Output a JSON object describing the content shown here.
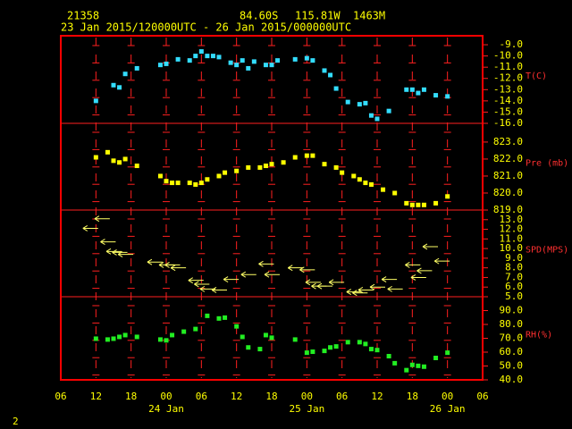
{
  "header": {
    "station": "21358",
    "latitude": "84.60S",
    "longitude": "115.81W",
    "elevation": "1463M",
    "period": "23 Jan 2015/120000UTC - 26 Jan 2015/000000UTC"
  },
  "page_number": "2",
  "chart_data": [
    {
      "type": "scatter",
      "marker": "square",
      "label": "T(C)",
      "color": "#33ddff",
      "xlim": [
        "2015-01-23T06:00Z",
        "2015-01-26T06:00Z"
      ],
      "x": [
        "2015-01-23T12:00Z",
        "2015-01-23T15:00Z",
        "2015-01-23T16:00Z",
        "2015-01-23T17:00Z",
        "2015-01-23T19:00Z",
        "2015-01-23T23:00Z",
        "2015-01-24T00:00Z",
        "2015-01-24T02:00Z",
        "2015-01-24T04:00Z",
        "2015-01-24T05:00Z",
        "2015-01-24T06:00Z",
        "2015-01-24T07:00Z",
        "2015-01-24T08:00Z",
        "2015-01-24T09:00Z",
        "2015-01-24T11:00Z",
        "2015-01-24T12:00Z",
        "2015-01-24T13:00Z",
        "2015-01-24T14:00Z",
        "2015-01-24T15:00Z",
        "2015-01-24T17:00Z",
        "2015-01-24T18:00Z",
        "2015-01-24T19:00Z",
        "2015-01-24T22:00Z",
        "2015-01-25T00:00Z",
        "2015-01-25T01:00Z",
        "2015-01-25T03:00Z",
        "2015-01-25T04:00Z",
        "2015-01-25T05:00Z",
        "2015-01-25T07:00Z",
        "2015-01-25T09:00Z",
        "2015-01-25T10:00Z",
        "2015-01-25T11:00Z",
        "2015-01-25T12:00Z",
        "2015-01-25T14:00Z",
        "2015-01-25T17:00Z",
        "2015-01-25T18:00Z",
        "2015-01-25T19:00Z",
        "2015-01-25T20:00Z",
        "2015-01-25T22:00Z",
        "2015-01-26T00:00Z"
      ],
      "values": [
        -14.0,
        -12.6,
        -12.8,
        -11.6,
        -11.1,
        -10.8,
        -10.7,
        -10.3,
        -10.4,
        -10.0,
        -9.6,
        -10.0,
        -10.0,
        -10.1,
        -10.6,
        -10.8,
        -10.4,
        -11.1,
        -10.5,
        -10.8,
        -10.8,
        -10.4,
        -10.3,
        -10.2,
        -10.4,
        -11.3,
        -11.7,
        -12.9,
        -14.1,
        -14.3,
        -14.2,
        -15.3,
        -15.6,
        -14.9,
        -13.0,
        -13.0,
        -13.3,
        -13.0,
        -13.5,
        -13.6
      ],
      "ylim": [
        -16,
        -8.2
      ],
      "yticks": [
        {
          "value": -9,
          "label": "-9.0"
        },
        {
          "value": -10,
          "label": "-10.0"
        },
        {
          "value": -11,
          "label": "-11.0"
        },
        {
          "value": -12,
          "label": "-12.0"
        },
        {
          "value": -13,
          "label": "-13.0"
        },
        {
          "value": -14,
          "label": "-14.0"
        },
        {
          "value": -15,
          "label": "-15.0"
        },
        {
          "value": -16,
          "label": "-16.0"
        }
      ]
    },
    {
      "type": "scatter",
      "marker": "square",
      "label": "Pre (mb)",
      "color": "#ffff00",
      "xlim": [
        "2015-01-23T06:00Z",
        "2015-01-26T06:00Z"
      ],
      "x": [
        "2015-01-23T12:00Z",
        "2015-01-23T14:00Z",
        "2015-01-23T15:00Z",
        "2015-01-23T16:00Z",
        "2015-01-23T17:00Z",
        "2015-01-23T19:00Z",
        "2015-01-23T23:00Z",
        "2015-01-24T00:00Z",
        "2015-01-24T01:00Z",
        "2015-01-24T02:00Z",
        "2015-01-24T04:00Z",
        "2015-01-24T05:00Z",
        "2015-01-24T06:00Z",
        "2015-01-24T07:00Z",
        "2015-01-24T09:00Z",
        "2015-01-24T10:00Z",
        "2015-01-24T12:00Z",
        "2015-01-24T14:00Z",
        "2015-01-24T16:00Z",
        "2015-01-24T17:00Z",
        "2015-01-24T18:00Z",
        "2015-01-24T20:00Z",
        "2015-01-24T22:00Z",
        "2015-01-25T00:00Z",
        "2015-01-25T01:00Z",
        "2015-01-25T03:00Z",
        "2015-01-25T05:00Z",
        "2015-01-25T06:00Z",
        "2015-01-25T08:00Z",
        "2015-01-25T09:00Z",
        "2015-01-25T10:00Z",
        "2015-01-25T11:00Z",
        "2015-01-25T13:00Z",
        "2015-01-25T15:00Z",
        "2015-01-25T17:00Z",
        "2015-01-25T18:00Z",
        "2015-01-25T19:00Z",
        "2015-01-25T20:00Z",
        "2015-01-25T22:00Z",
        "2015-01-26T00:00Z"
      ],
      "values": [
        822.1,
        822.4,
        821.9,
        821.8,
        822.0,
        821.6,
        821.0,
        820.7,
        820.6,
        820.6,
        820.6,
        820.5,
        820.6,
        820.8,
        821.0,
        821.2,
        821.3,
        821.5,
        821.5,
        821.6,
        821.7,
        821.8,
        822.1,
        822.2,
        822.2,
        821.7,
        821.5,
        821.2,
        821.0,
        820.8,
        820.6,
        820.5,
        820.2,
        820.0,
        819.4,
        819.3,
        819.3,
        819.3,
        819.4,
        819.8
      ],
      "ylim": [
        819,
        824.1
      ],
      "yticks": [
        {
          "value": 823,
          "label": "823.0"
        },
        {
          "value": 822,
          "label": "822.0"
        },
        {
          "value": 821,
          "label": "821.0"
        },
        {
          "value": 820,
          "label": "820.0"
        },
        {
          "value": 819,
          "label": "819.0"
        }
      ]
    },
    {
      "type": "scatter",
      "marker": "arrow",
      "label": "SPD(MPS)",
      "color": "#ffff66",
      "xlim": [
        "2015-01-23T06:00Z",
        "2015-01-26T06:00Z"
      ],
      "x": [
        "2015-01-23T11:00Z",
        "2015-01-23T13:00Z",
        "2015-01-23T14:00Z",
        "2015-01-23T15:00Z",
        "2015-01-23T16:00Z",
        "2015-01-23T17:00Z",
        "2015-01-23T22:00Z",
        "2015-01-24T00:00Z",
        "2015-01-24T01:00Z",
        "2015-01-24T02:00Z",
        "2015-01-24T05:00Z",
        "2015-01-24T06:00Z",
        "2015-01-24T07:00Z",
        "2015-01-24T09:00Z",
        "2015-01-24T11:00Z",
        "2015-01-24T14:00Z",
        "2015-01-24T17:00Z",
        "2015-01-24T18:00Z",
        "2015-01-24T22:00Z",
        "2015-01-25T00:00Z",
        "2015-01-25T01:00Z",
        "2015-01-25T02:00Z",
        "2015-01-25T03:00Z",
        "2015-01-25T05:00Z",
        "2015-01-25T08:00Z",
        "2015-01-25T09:00Z",
        "2015-01-25T10:00Z",
        "2015-01-25T12:00Z",
        "2015-01-25T14:00Z",
        "2015-01-25T15:00Z",
        "2015-01-25T18:00Z",
        "2015-01-25T19:00Z",
        "2015-01-25T20:00Z",
        "2015-01-25T21:00Z",
        "2015-01-25T23:00Z"
      ],
      "values": [
        12.1,
        13.1,
        10.7,
        9.7,
        9.6,
        9.4,
        8.6,
        8.3,
        8.3,
        8.0,
        6.7,
        6.3,
        5.8,
        5.7,
        6.8,
        7.3,
        8.4,
        7.3,
        8.0,
        7.8,
        6.5,
        6.1,
        6.1,
        6.5,
        5.5,
        5.4,
        5.7,
        6.0,
        6.8,
        5.8,
        8.3,
        7.0,
        7.7,
        10.2,
        8.7
      ],
      "ylim": [
        5,
        14
      ],
      "yticks": [
        {
          "value": 13,
          "label": "13.0"
        },
        {
          "value": 12,
          "label": "12.0"
        },
        {
          "value": 11,
          "label": "11.0"
        },
        {
          "value": 10,
          "label": "10.0"
        },
        {
          "value": 9,
          "label": "9.0"
        },
        {
          "value": 8,
          "label": "8.0"
        },
        {
          "value": 7,
          "label": "7.0"
        },
        {
          "value": 6,
          "label": "6.0"
        },
        {
          "value": 5,
          "label": "5.0"
        }
      ]
    },
    {
      "type": "scatter",
      "marker": "square",
      "label": "RH(%)",
      "color": "#22ee22",
      "xlim": [
        "2015-01-23T06:00Z",
        "2015-01-26T06:00Z"
      ],
      "x": [
        "2015-01-23T12:00Z",
        "2015-01-23T14:00Z",
        "2015-01-23T15:00Z",
        "2015-01-23T16:00Z",
        "2015-01-23T17:00Z",
        "2015-01-23T19:00Z",
        "2015-01-23T23:00Z",
        "2015-01-24T00:00Z",
        "2015-01-24T01:00Z",
        "2015-01-24T03:00Z",
        "2015-01-24T05:00Z",
        "2015-01-24T07:00Z",
        "2015-01-24T09:00Z",
        "2015-01-24T10:00Z",
        "2015-01-24T12:00Z",
        "2015-01-24T13:00Z",
        "2015-01-24T14:00Z",
        "2015-01-24T16:00Z",
        "2015-01-24T17:00Z",
        "2015-01-24T18:00Z",
        "2015-01-24T22:00Z",
        "2015-01-25T00:00Z",
        "2015-01-25T01:00Z",
        "2015-01-25T03:00Z",
        "2015-01-25T04:00Z",
        "2015-01-25T05:00Z",
        "2015-01-25T07:00Z",
        "2015-01-25T09:00Z",
        "2015-01-25T10:00Z",
        "2015-01-25T11:00Z",
        "2015-01-25T12:00Z",
        "2015-01-25T14:00Z",
        "2015-01-25T15:00Z",
        "2015-01-25T17:00Z",
        "2015-01-25T18:00Z",
        "2015-01-25T19:00Z",
        "2015-01-25T20:00Z",
        "2015-01-25T22:00Z",
        "2015-01-26T00:00Z"
      ],
      "values": [
        69.7,
        69.1,
        69.7,
        71.0,
        72.3,
        71.0,
        69.1,
        68.5,
        72.3,
        74.8,
        76.7,
        86.2,
        84.3,
        84.9,
        78.6,
        71.0,
        63.4,
        62.2,
        72.3,
        70.4,
        69.1,
        59.6,
        60.3,
        60.9,
        63.4,
        64.1,
        67.2,
        67.2,
        65.9,
        62.2,
        61.5,
        57.1,
        52.0,
        47.0,
        50.8,
        50.1,
        49.5,
        55.8,
        59.6
      ],
      "ylim": [
        40,
        100
      ],
      "yticks": [
        {
          "value": 90,
          "label": "90.0"
        },
        {
          "value": 80,
          "label": "80.0"
        },
        {
          "value": 70,
          "label": "70.0"
        },
        {
          "value": 60,
          "label": "60.0"
        },
        {
          "value": 50,
          "label": "50.0"
        },
        {
          "value": 40,
          "label": "40.0"
        }
      ],
      "xticks": [
        {
          "value": "2015-01-23T06:00Z",
          "label": "06"
        },
        {
          "value": "2015-01-23T12:00Z",
          "label": "12"
        },
        {
          "value": "2015-01-23T18:00Z",
          "label": "18"
        },
        {
          "value": "2015-01-24T00:00Z",
          "label": "00"
        },
        {
          "value": "2015-01-24T06:00Z",
          "label": "06"
        },
        {
          "value": "2015-01-24T12:00Z",
          "label": "12"
        },
        {
          "value": "2015-01-24T18:00Z",
          "label": "18"
        },
        {
          "value": "2015-01-25T00:00Z",
          "label": "00"
        },
        {
          "value": "2015-01-25T06:00Z",
          "label": "06"
        },
        {
          "value": "2015-01-25T12:00Z",
          "label": "12"
        },
        {
          "value": "2015-01-25T18:00Z",
          "label": "18"
        },
        {
          "value": "2015-01-26T00:00Z",
          "label": "00"
        },
        {
          "value": "2015-01-26T06:00Z",
          "label": "06"
        }
      ],
      "dates": [
        {
          "value": "2015-01-24T00:00Z",
          "label": "24 Jan"
        },
        {
          "value": "2015-01-25T00:00Z",
          "label": "25 Jan"
        },
        {
          "value": "2015-01-26T00:00Z",
          "label": "26 Jan"
        }
      ]
    }
  ]
}
